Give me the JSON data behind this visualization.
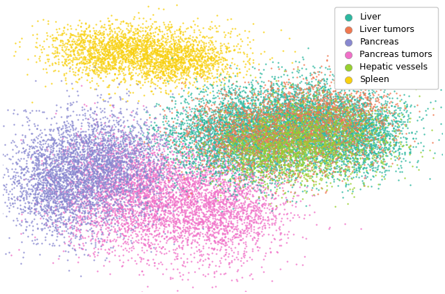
{
  "title": "",
  "categories": [
    "Liver",
    "Liver tumors",
    "Pancreas",
    "Pancreas tumors",
    "Hepatic vessels",
    "Spleen"
  ],
  "colors": [
    "#2db8a0",
    "#f07850",
    "#8888d0",
    "#f070c8",
    "#98d030",
    "#f8d010"
  ],
  "background_color": "#ffffff",
  "marker_size": 3.0,
  "alpha": 0.85,
  "legend_fontsize": 9,
  "figsize": [
    6.4,
    4.23
  ],
  "dpi": 100
}
